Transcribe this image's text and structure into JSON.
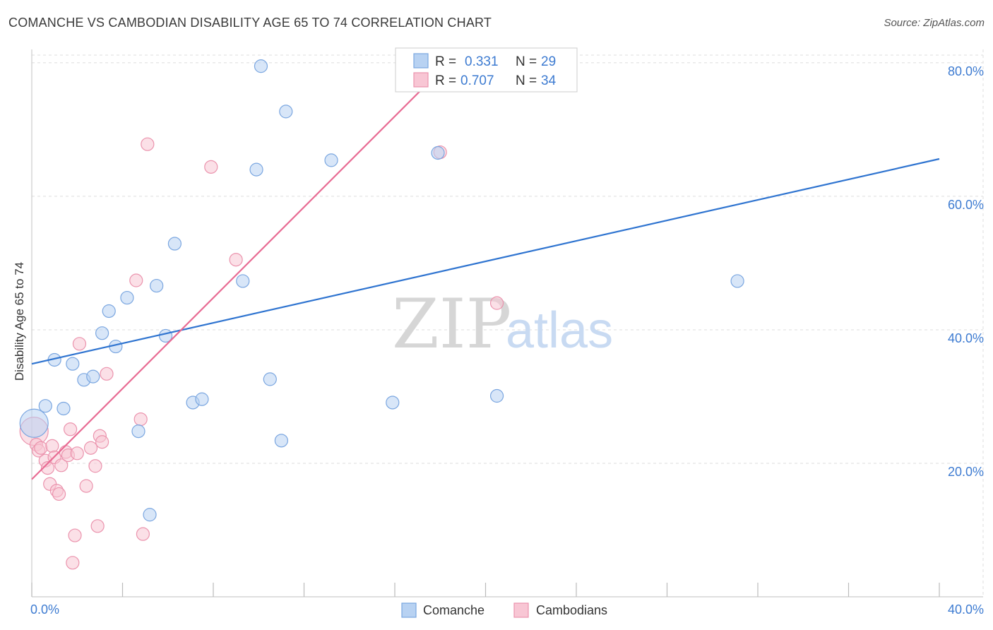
{
  "title": "COMANCHE VS CAMBODIAN DISABILITY AGE 65 TO 74 CORRELATION CHART",
  "source": "Source: ZipAtlas.com",
  "watermark": {
    "zip": "ZIP",
    "atlas": "atlas"
  },
  "colors": {
    "comanche_fill": "#b8d2f2",
    "comanche_stroke": "#7aa6e0",
    "comanche_line": "#2f74d0",
    "cambodian_fill": "#f8c6d4",
    "cambodian_stroke": "#eb93ad",
    "cambodian_line": "#e86b93",
    "axis_label": "#3d7bd1"
  },
  "legend": {
    "row1": {
      "r_label": "R =",
      "r_value": "0.331",
      "n_label": "N =",
      "n_value": "29"
    },
    "row2": {
      "r_label": "R =",
      "r_value": "0.707",
      "n_label": "N =",
      "n_value": "34"
    }
  },
  "bottom_legend": {
    "series1": "Comanche",
    "series2": "Cambodians"
  },
  "chart_data": {
    "type": "scatter",
    "title": "COMANCHE VS CAMBODIAN DISABILITY AGE 65 TO 74 CORRELATION CHART",
    "xlabel": "",
    "ylabel": "Disability Age 65 to 74",
    "xlim": [
      0,
      40
    ],
    "ylim": [
      0,
      82
    ],
    "x_tick_labels": [
      "0.0%",
      "40.0%"
    ],
    "y_ticks": [
      20,
      40,
      60,
      80
    ],
    "y_tick_labels": [
      "20.0%",
      "40.0%",
      "60.0%",
      "80.0%"
    ],
    "series": [
      {
        "name": "Comanche",
        "r": 0.331,
        "n": 29,
        "points": [
          [
            0.1,
            26.0,
            "large"
          ],
          [
            0.6,
            28.6
          ],
          [
            1.0,
            35.5
          ],
          [
            1.4,
            28.2
          ],
          [
            1.8,
            34.9
          ],
          [
            2.3,
            32.5
          ],
          [
            2.7,
            33.0
          ],
          [
            3.1,
            39.5
          ],
          [
            3.4,
            42.8
          ],
          [
            3.7,
            37.5
          ],
          [
            4.2,
            44.8
          ],
          [
            4.7,
            24.8
          ],
          [
            5.2,
            12.3
          ],
          [
            5.5,
            46.6
          ],
          [
            5.9,
            39.1
          ],
          [
            6.3,
            52.9
          ],
          [
            7.1,
            29.1
          ],
          [
            7.5,
            29.6
          ],
          [
            9.3,
            47.3
          ],
          [
            9.9,
            64.0
          ],
          [
            10.1,
            79.5
          ],
          [
            10.5,
            32.6
          ],
          [
            11.0,
            23.4
          ],
          [
            11.2,
            72.7
          ],
          [
            13.2,
            65.4
          ],
          [
            15.9,
            29.1
          ],
          [
            17.9,
            66.5
          ],
          [
            20.5,
            30.1
          ],
          [
            31.1,
            47.3
          ]
        ],
        "trend": {
          "x": [
            0,
            40
          ],
          "y": [
            34.9,
            65.6
          ]
        }
      },
      {
        "name": "Cambodians",
        "r": 0.707,
        "n": 34,
        "points": [
          [
            0.1,
            24.8,
            "large"
          ],
          [
            0.2,
            22.8
          ],
          [
            0.3,
            21.9
          ],
          [
            0.4,
            22.3
          ],
          [
            0.6,
            20.4
          ],
          [
            0.7,
            19.3
          ],
          [
            0.8,
            16.9
          ],
          [
            0.9,
            22.6
          ],
          [
            1.0,
            20.9
          ],
          [
            1.1,
            15.9
          ],
          [
            1.2,
            15.4
          ],
          [
            1.3,
            19.7
          ],
          [
            1.5,
            21.7
          ],
          [
            1.6,
            21.2
          ],
          [
            1.7,
            25.1
          ],
          [
            1.8,
            5.1
          ],
          [
            1.9,
            9.2
          ],
          [
            2.0,
            21.5
          ],
          [
            2.1,
            37.9
          ],
          [
            2.4,
            16.6
          ],
          [
            2.6,
            22.3
          ],
          [
            2.8,
            19.6
          ],
          [
            2.9,
            10.6
          ],
          [
            3.0,
            24.1
          ],
          [
            3.1,
            23.2
          ],
          [
            3.3,
            33.4
          ],
          [
            4.6,
            47.4
          ],
          [
            4.8,
            26.6
          ],
          [
            4.9,
            9.4
          ],
          [
            5.1,
            67.8
          ],
          [
            7.9,
            64.4
          ],
          [
            9.0,
            50.5
          ],
          [
            18.0,
            66.6
          ],
          [
            20.5,
            44.0
          ]
        ],
        "trend": {
          "x": [
            0,
            18.3
          ],
          "y": [
            17.6,
            79.8
          ]
        }
      }
    ]
  }
}
